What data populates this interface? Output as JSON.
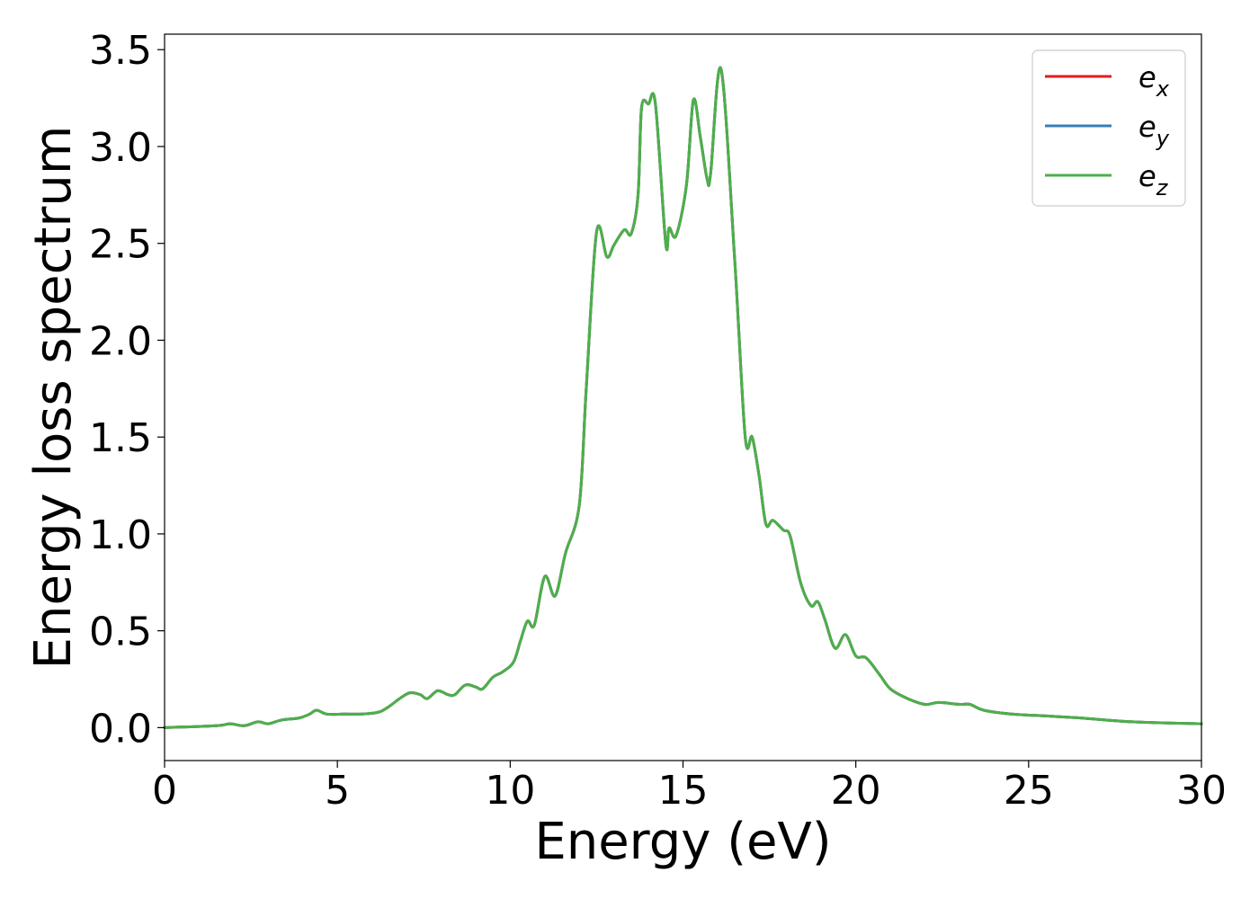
{
  "chart_data": {
    "type": "line",
    "xlabel": "Energy (eV)",
    "ylabel": "Energy loss spectrum",
    "xlim": [
      0,
      30
    ],
    "ylim": [
      -0.17,
      3.58
    ],
    "x_ticks": [
      0,
      5,
      10,
      15,
      20,
      25,
      30
    ],
    "y_ticks": [
      "0.0",
      "0.5",
      "1.0",
      "1.5",
      "2.0",
      "2.5",
      "3.0",
      "3.5"
    ],
    "grid": false,
    "legend_position": "top-right",
    "series": [
      {
        "name": "e_x",
        "legend_base": "e",
        "legend_sub": "x",
        "color": "#e41a1c",
        "x": [
          0,
          1.5,
          1.9,
          2.3,
          2.7,
          3.0,
          3.4,
          3.9,
          4.2,
          4.4,
          4.7,
          5.2,
          5.7,
          6.2,
          6.5,
          6.8,
          7.1,
          7.4,
          7.6,
          7.9,
          8.2,
          8.4,
          8.7,
          9.0,
          9.2,
          9.5,
          9.8,
          10.1,
          10.3,
          10.5,
          10.7,
          11.0,
          11.3,
          11.6,
          12.0,
          12.2,
          12.5,
          12.8,
          13.0,
          13.3,
          13.5,
          13.7,
          13.8,
          14.0,
          14.2,
          14.5,
          14.6,
          14.8,
          15.1,
          15.3,
          15.5,
          15.7,
          15.8,
          16.1,
          16.5,
          16.8,
          17.0,
          17.2,
          17.4,
          17.6,
          17.9,
          18.1,
          18.4,
          18.7,
          18.9,
          19.1,
          19.4,
          19.7,
          20.0,
          20.3,
          20.7,
          21.0,
          21.5,
          22.0,
          22.4,
          23.0,
          23.3,
          23.7,
          24.5,
          25.5,
          26.5,
          28.0,
          30.0
        ],
        "y": [
          0.0,
          0.01,
          0.02,
          0.01,
          0.03,
          0.02,
          0.04,
          0.05,
          0.07,
          0.09,
          0.07,
          0.07,
          0.07,
          0.08,
          0.11,
          0.15,
          0.18,
          0.17,
          0.15,
          0.19,
          0.17,
          0.17,
          0.22,
          0.21,
          0.2,
          0.26,
          0.29,
          0.34,
          0.45,
          0.55,
          0.53,
          0.78,
          0.68,
          0.9,
          1.15,
          1.75,
          2.56,
          2.43,
          2.49,
          2.57,
          2.55,
          2.75,
          3.2,
          3.22,
          3.22,
          2.5,
          2.58,
          2.54,
          2.8,
          3.24,
          3.05,
          2.83,
          2.86,
          3.4,
          2.4,
          1.5,
          1.5,
          1.3,
          1.05,
          1.07,
          1.02,
          0.99,
          0.75,
          0.63,
          0.65,
          0.56,
          0.41,
          0.48,
          0.37,
          0.36,
          0.27,
          0.2,
          0.15,
          0.12,
          0.13,
          0.12,
          0.12,
          0.09,
          0.07,
          0.06,
          0.05,
          0.03,
          0.02
        ]
      },
      {
        "name": "e_y",
        "legend_base": "e",
        "legend_sub": "y",
        "color": "#377eb8",
        "x": [
          0,
          1.5,
          1.9,
          2.3,
          2.7,
          3.0,
          3.4,
          3.9,
          4.2,
          4.4,
          4.7,
          5.2,
          5.7,
          6.2,
          6.5,
          6.8,
          7.1,
          7.4,
          7.6,
          7.9,
          8.2,
          8.4,
          8.7,
          9.0,
          9.2,
          9.5,
          9.8,
          10.1,
          10.3,
          10.5,
          10.7,
          11.0,
          11.3,
          11.6,
          12.0,
          12.2,
          12.5,
          12.8,
          13.0,
          13.3,
          13.5,
          13.7,
          13.8,
          14.0,
          14.2,
          14.5,
          14.6,
          14.8,
          15.1,
          15.3,
          15.5,
          15.7,
          15.8,
          16.1,
          16.5,
          16.8,
          17.0,
          17.2,
          17.4,
          17.6,
          17.9,
          18.1,
          18.4,
          18.7,
          18.9,
          19.1,
          19.4,
          19.7,
          20.0,
          20.3,
          20.7,
          21.0,
          21.5,
          22.0,
          22.4,
          23.0,
          23.3,
          23.7,
          24.5,
          25.5,
          26.5,
          28.0,
          30.0
        ],
        "y": [
          0.0,
          0.01,
          0.02,
          0.01,
          0.03,
          0.02,
          0.04,
          0.05,
          0.07,
          0.09,
          0.07,
          0.07,
          0.07,
          0.08,
          0.11,
          0.15,
          0.18,
          0.17,
          0.15,
          0.19,
          0.17,
          0.17,
          0.22,
          0.21,
          0.2,
          0.26,
          0.29,
          0.34,
          0.45,
          0.55,
          0.53,
          0.78,
          0.68,
          0.9,
          1.15,
          1.75,
          2.56,
          2.43,
          2.49,
          2.57,
          2.55,
          2.75,
          3.2,
          3.22,
          3.22,
          2.5,
          2.58,
          2.54,
          2.8,
          3.24,
          3.05,
          2.83,
          2.86,
          3.4,
          2.4,
          1.5,
          1.5,
          1.3,
          1.05,
          1.07,
          1.02,
          0.99,
          0.75,
          0.63,
          0.65,
          0.56,
          0.41,
          0.48,
          0.37,
          0.36,
          0.27,
          0.2,
          0.15,
          0.12,
          0.13,
          0.12,
          0.12,
          0.09,
          0.07,
          0.06,
          0.05,
          0.03,
          0.02
        ]
      },
      {
        "name": "e_z",
        "legend_base": "e",
        "legend_sub": "z",
        "color": "#4daf4a",
        "x": [
          0,
          1.5,
          1.9,
          2.3,
          2.7,
          3.0,
          3.4,
          3.9,
          4.2,
          4.4,
          4.7,
          5.2,
          5.7,
          6.2,
          6.5,
          6.8,
          7.1,
          7.4,
          7.6,
          7.9,
          8.2,
          8.4,
          8.7,
          9.0,
          9.2,
          9.5,
          9.8,
          10.1,
          10.3,
          10.5,
          10.7,
          11.0,
          11.3,
          11.6,
          12.0,
          12.2,
          12.5,
          12.8,
          13.0,
          13.3,
          13.5,
          13.7,
          13.8,
          14.0,
          14.2,
          14.5,
          14.6,
          14.8,
          15.1,
          15.3,
          15.5,
          15.7,
          15.8,
          16.1,
          16.5,
          16.8,
          17.0,
          17.2,
          17.4,
          17.6,
          17.9,
          18.1,
          18.4,
          18.7,
          18.9,
          19.1,
          19.4,
          19.7,
          20.0,
          20.3,
          20.7,
          21.0,
          21.5,
          22.0,
          22.4,
          23.0,
          23.3,
          23.7,
          24.5,
          25.5,
          26.5,
          28.0,
          30.0
        ],
        "y": [
          0.0,
          0.01,
          0.02,
          0.01,
          0.03,
          0.02,
          0.04,
          0.05,
          0.07,
          0.09,
          0.07,
          0.07,
          0.07,
          0.08,
          0.11,
          0.15,
          0.18,
          0.17,
          0.15,
          0.19,
          0.17,
          0.17,
          0.22,
          0.21,
          0.2,
          0.26,
          0.29,
          0.34,
          0.45,
          0.55,
          0.53,
          0.78,
          0.68,
          0.9,
          1.15,
          1.75,
          2.56,
          2.43,
          2.49,
          2.57,
          2.55,
          2.75,
          3.2,
          3.22,
          3.22,
          2.5,
          2.58,
          2.54,
          2.8,
          3.24,
          3.05,
          2.83,
          2.86,
          3.4,
          2.4,
          1.5,
          1.5,
          1.3,
          1.05,
          1.07,
          1.02,
          0.99,
          0.75,
          0.63,
          0.65,
          0.56,
          0.41,
          0.48,
          0.37,
          0.36,
          0.27,
          0.2,
          0.15,
          0.12,
          0.13,
          0.12,
          0.12,
          0.09,
          0.07,
          0.06,
          0.05,
          0.03,
          0.02
        ]
      }
    ]
  }
}
